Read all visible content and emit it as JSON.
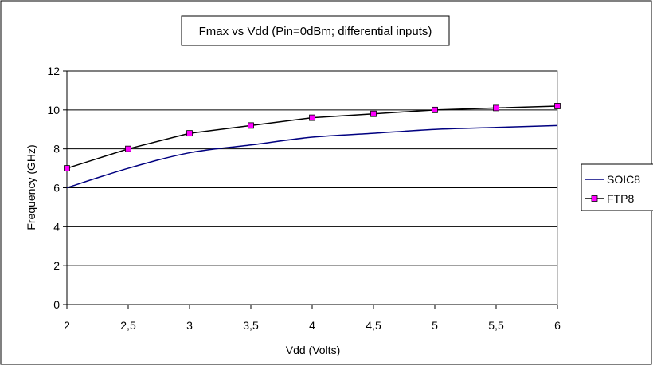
{
  "chart_data": {
    "type": "line",
    "title": "Fmax vs Vdd (Pin=0dBm; differential inputs)",
    "xlabel": "Vdd (Volts)",
    "ylabel": "Frequency (GHz)",
    "x": [
      2,
      2.5,
      3,
      3.5,
      4,
      4.5,
      5,
      5.5,
      6
    ],
    "x_tick_labels": [
      "2",
      "2,5",
      "3",
      "3,5",
      "4",
      "4,5",
      "5",
      "5,5",
      "6"
    ],
    "y_tick_labels": [
      "0",
      "2",
      "4",
      "6",
      "8",
      "10",
      "12"
    ],
    "xlim": [
      2,
      6
    ],
    "ylim": [
      0,
      12
    ],
    "grid": "horizontal",
    "legend_position": "right",
    "series": [
      {
        "name": "SOIC8",
        "color": "#000080",
        "marker": "none",
        "values": [
          6.0,
          7.0,
          7.8,
          8.2,
          8.6,
          8.8,
          9.0,
          9.1,
          9.2
        ]
      },
      {
        "name": "FTP8",
        "color": "#000000",
        "marker": "square",
        "marker_color": "#ff00ff",
        "values": [
          7.0,
          8.0,
          8.8,
          9.2,
          9.6,
          9.8,
          10.0,
          10.1,
          10.2
        ]
      }
    ]
  }
}
